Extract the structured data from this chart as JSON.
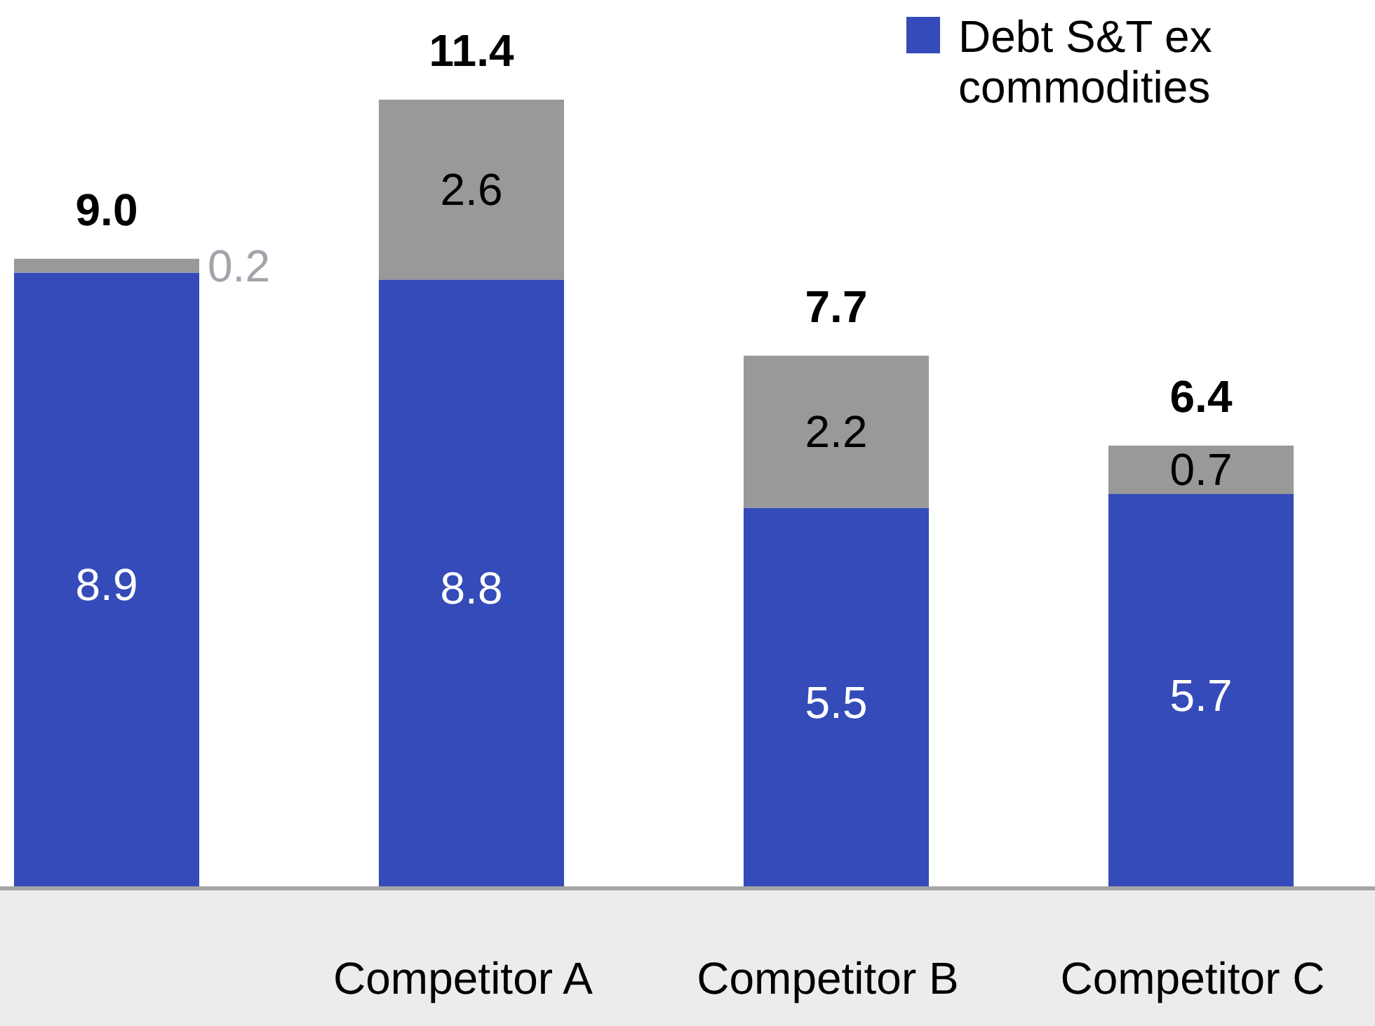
{
  "chart_data": {
    "type": "bar",
    "stacked": true,
    "categories": [
      null,
      "Competitor A",
      "Competitor B",
      "Competitor C"
    ],
    "series": [
      {
        "name": "Debt S&T ex commodities",
        "color": "#344bb9",
        "values": [
          8.9,
          8.8,
          5.5,
          5.7
        ]
      },
      {
        "color": "#999999",
        "values": [
          0.2,
          2.6,
          2.2,
          0.7
        ]
      }
    ],
    "data_labels": true,
    "totals": [
      "9.0",
      "11.4",
      "7.7",
      "6.4"
    ],
    "legend": "top right"
  }
}
